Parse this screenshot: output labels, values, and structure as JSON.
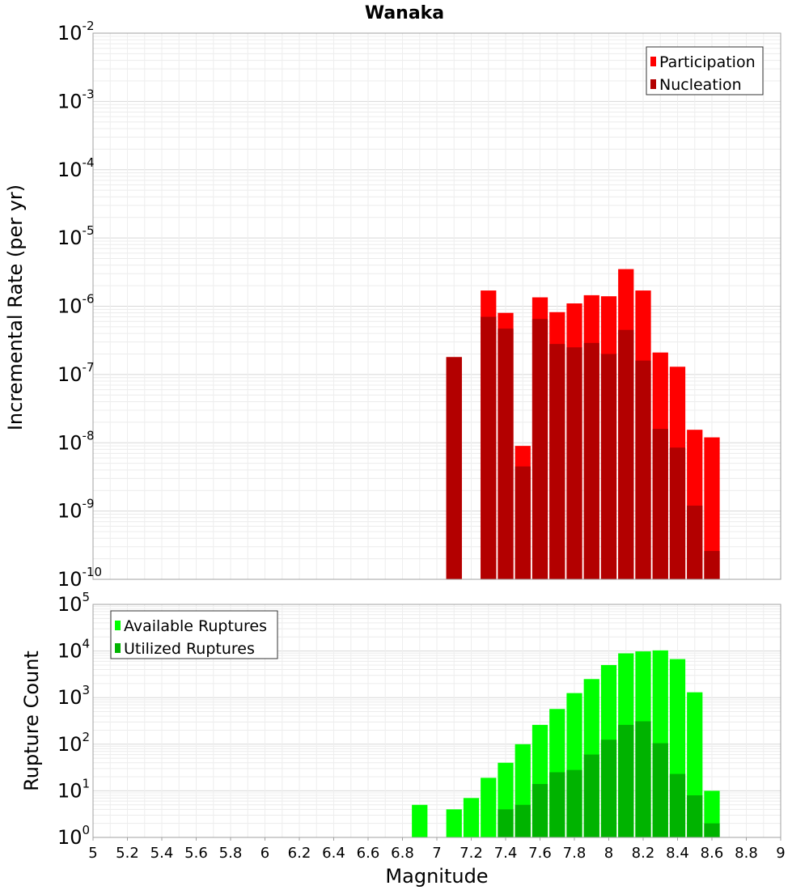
{
  "chart_data": [
    {
      "type": "bar",
      "title": "Wanaka",
      "ylabel": "Incremental Rate (per yr)",
      "xlabel": "",
      "x_range": [
        5,
        9
      ],
      "y_scale": "log",
      "ylim": [
        1e-10,
        0.01
      ],
      "y_tick_exponents": [
        "-10",
        "-9",
        "-8",
        "-7",
        "-6",
        "-5",
        "-4",
        "-3",
        "-2"
      ],
      "legend_position": "top-right",
      "bin_width": 0.1,
      "x": [
        7.1,
        7.3,
        7.4,
        7.5,
        7.6,
        7.7,
        7.8,
        7.9,
        8.0,
        8.1,
        8.2,
        8.3,
        8.4,
        8.5,
        8.6
      ],
      "series": [
        {
          "name": "Participation",
          "color": "#ff0000",
          "values": [
            1.8e-07,
            1.7e-06,
            8e-07,
            9e-09,
            1.35e-06,
            8.2e-07,
            1.1e-06,
            1.45e-06,
            1.4e-06,
            3.5e-06,
            1.7e-06,
            2.1e-07,
            1.3e-07,
            1.55e-08,
            1.2e-08
          ]
        },
        {
          "name": "Nucleation",
          "color": "#b30000",
          "values": [
            1.8e-07,
            7e-07,
            4.7e-07,
            4.5e-09,
            6.5e-07,
            2.8e-07,
            2.5e-07,
            2.9e-07,
            2e-07,
            4.5e-07,
            1.6e-07,
            1.6e-08,
            8.5e-09,
            1.2e-09,
            2.6e-10
          ]
        }
      ]
    },
    {
      "type": "bar",
      "title": "",
      "ylabel": "Rupture Count",
      "xlabel": "Magnitude",
      "x_range": [
        5,
        9
      ],
      "x_ticks": [
        "5",
        "5.2",
        "5.4",
        "5.6",
        "5.8",
        "6",
        "6.2",
        "6.4",
        "6.6",
        "6.8",
        "7",
        "7.2",
        "7.4",
        "7.6",
        "7.8",
        "8",
        "8.2",
        "8.4",
        "8.6",
        "8.8",
        "9"
      ],
      "y_scale": "log",
      "ylim": [
        1,
        100000
      ],
      "y_tick_exponents": [
        "0",
        "1",
        "2",
        "3",
        "4",
        "5"
      ],
      "legend_position": "top-left",
      "bin_width": 0.1,
      "x": [
        6.9,
        7.1,
        7.2,
        7.3,
        7.4,
        7.5,
        7.6,
        7.7,
        7.8,
        7.9,
        8.0,
        8.1,
        8.2,
        8.3,
        8.4,
        8.5,
        8.6
      ],
      "series": [
        {
          "name": "Available Ruptures",
          "color": "#00ff00",
          "values": [
            5,
            4,
            7,
            19,
            40,
            100,
            260,
            570,
            1250,
            2500,
            5000,
            8900,
            9800,
            10300,
            6700,
            1300,
            10
          ]
        },
        {
          "name": "Utilized Ruptures",
          "color": "#00b300",
          "values": [
            0,
            1,
            0,
            1,
            4,
            5,
            14,
            25,
            28,
            60,
            125,
            260,
            310,
            105,
            23,
            8,
            2
          ]
        }
      ]
    }
  ]
}
